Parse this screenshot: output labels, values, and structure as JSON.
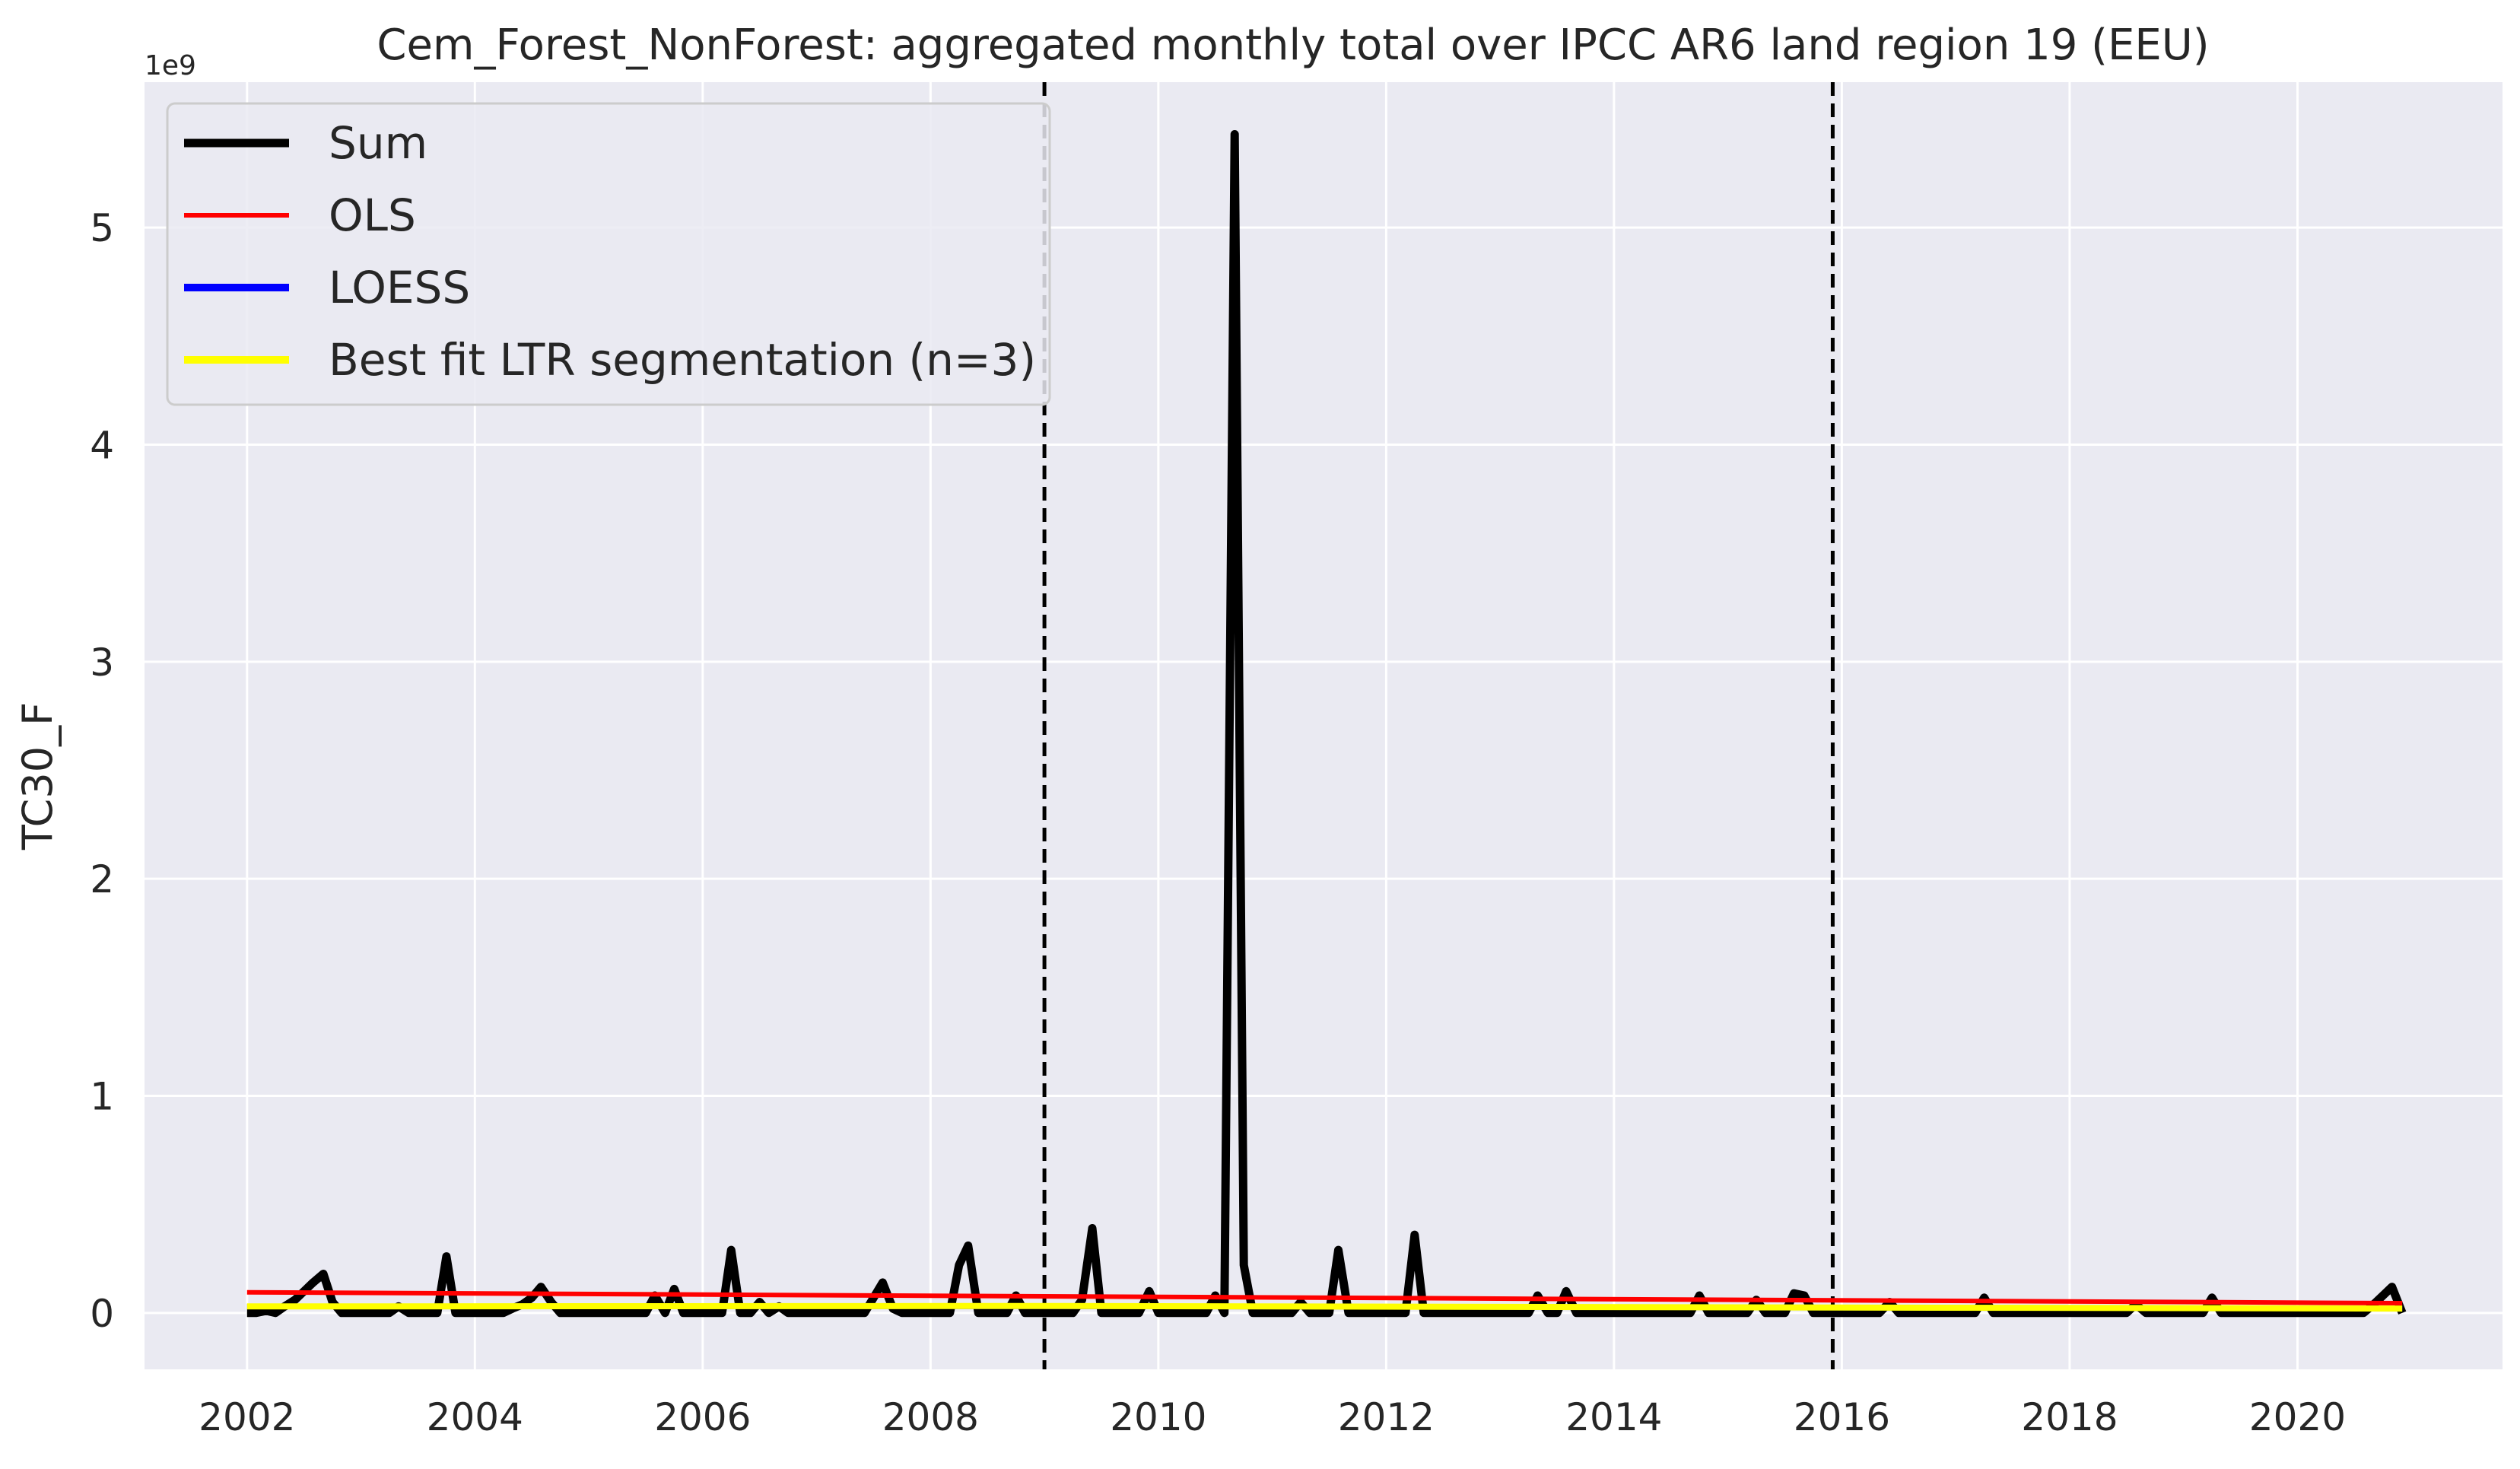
{
  "chart_data": {
    "type": "line",
    "title": "Cem_Forest_NonForest: aggregated monthly total over IPCC AR6 land region 19 (EEU)",
    "xlabel": "",
    "ylabel": "TC30_F",
    "y_offset_label": "1e9",
    "xlim": [
      2001.1,
      2021.8
    ],
    "ylim": [
      -0.26,
      5.67
    ],
    "x_ticks": [
      2002,
      2004,
      2006,
      2008,
      2010,
      2012,
      2014,
      2016,
      2018,
      2020
    ],
    "x_tick_labels": [
      "2002",
      "2004",
      "2006",
      "2008",
      "2010",
      "2012",
      "2014",
      "2016",
      "2018",
      "2020"
    ],
    "y_ticks": [
      0,
      1,
      2,
      3,
      4,
      5
    ],
    "y_tick_labels": [
      "0",
      "1",
      "2",
      "3",
      "4",
      "5"
    ],
    "grid": true,
    "legend_position": "top-left",
    "vertical_lines": [
      2009.0,
      2015.92
    ],
    "series": [
      {
        "name": "Sum",
        "color": "#000000",
        "x": [
          2002.0,
          2002.08,
          2002.17,
          2002.25,
          2002.33,
          2002.42,
          2002.5,
          2002.58,
          2002.67,
          2002.75,
          2002.83,
          2002.92,
          2003.0,
          2003.08,
          2003.17,
          2003.25,
          2003.33,
          2003.42,
          2003.5,
          2003.58,
          2003.67,
          2003.75,
          2003.83,
          2003.92,
          2004.0,
          2004.08,
          2004.17,
          2004.25,
          2004.33,
          2004.42,
          2004.5,
          2004.58,
          2004.67,
          2004.75,
          2004.83,
          2004.92,
          2005.0,
          2005.08,
          2005.17,
          2005.25,
          2005.33,
          2005.42,
          2005.5,
          2005.58,
          2005.67,
          2005.75,
          2005.83,
          2005.92,
          2006.0,
          2006.08,
          2006.17,
          2006.25,
          2006.33,
          2006.42,
          2006.5,
          2006.58,
          2006.67,
          2006.75,
          2006.83,
          2006.92,
          2007.0,
          2007.08,
          2007.17,
          2007.25,
          2007.33,
          2007.42,
          2007.5,
          2007.58,
          2007.67,
          2007.75,
          2007.83,
          2007.92,
          2008.0,
          2008.08,
          2008.17,
          2008.25,
          2008.33,
          2008.42,
          2008.5,
          2008.58,
          2008.67,
          2008.75,
          2008.83,
          2008.92,
          2009.0,
          2009.08,
          2009.17,
          2009.25,
          2009.33,
          2009.42,
          2009.5,
          2009.58,
          2009.67,
          2009.75,
          2009.83,
          2009.92,
          2010.0,
          2010.08,
          2010.17,
          2010.25,
          2010.33,
          2010.42,
          2010.5,
          2010.58,
          2010.67,
          2010.75,
          2010.83,
          2010.92,
          2011.0,
          2011.08,
          2011.17,
          2011.25,
          2011.33,
          2011.42,
          2011.5,
          2011.58,
          2011.67,
          2011.75,
          2011.83,
          2011.92,
          2012.0,
          2012.08,
          2012.17,
          2012.25,
          2012.33,
          2012.42,
          2012.5,
          2012.58,
          2012.67,
          2012.75,
          2012.83,
          2012.92,
          2013.0,
          2013.08,
          2013.17,
          2013.25,
          2013.33,
          2013.42,
          2013.5,
          2013.58,
          2013.67,
          2013.75,
          2013.83,
          2013.92,
          2014.0,
          2014.08,
          2014.17,
          2014.25,
          2014.33,
          2014.42,
          2014.5,
          2014.58,
          2014.67,
          2014.75,
          2014.83,
          2014.92,
          2015.0,
          2015.08,
          2015.17,
          2015.25,
          2015.33,
          2015.42,
          2015.5,
          2015.58,
          2015.67,
          2015.75,
          2015.83,
          2015.92,
          2016.0,
          2016.08,
          2016.17,
          2016.25,
          2016.33,
          2016.42,
          2016.5,
          2016.58,
          2016.67,
          2016.75,
          2016.83,
          2016.92,
          2017.0,
          2017.08,
          2017.17,
          2017.25,
          2017.33,
          2017.42,
          2017.5,
          2017.58,
          2017.67,
          2017.75,
          2017.83,
          2017.92,
          2018.0,
          2018.08,
          2018.17,
          2018.25,
          2018.33,
          2018.42,
          2018.5,
          2018.58,
          2018.67,
          2018.75,
          2018.83,
          2018.92,
          2019.0,
          2019.08,
          2019.17,
          2019.25,
          2019.33,
          2019.42,
          2019.5,
          2019.58,
          2019.67,
          2019.75,
          2019.83,
          2019.92,
          2020.0,
          2020.08,
          2020.17,
          2020.25,
          2020.33,
          2020.42,
          2020.5,
          2020.58,
          2020.67,
          2020.75,
          2020.83,
          2020.92
        ],
        "y": [
          0.0,
          0.0,
          0.01,
          0.0,
          0.03,
          0.06,
          0.1,
          0.14,
          0.18,
          0.05,
          0.0,
          0.0,
          0.0,
          0.0,
          0.0,
          0.0,
          0.03,
          0.0,
          0.0,
          0.0,
          0.0,
          0.26,
          0.0,
          0.0,
          0.0,
          0.0,
          0.0,
          0.0,
          0.02,
          0.04,
          0.07,
          0.12,
          0.05,
          0.0,
          0.0,
          0.0,
          0.0,
          0.0,
          0.0,
          0.0,
          0.0,
          0.0,
          0.0,
          0.08,
          0.0,
          0.11,
          0.0,
          0.0,
          0.0,
          0.0,
          0.0,
          0.29,
          0.0,
          0.0,
          0.05,
          0.0,
          0.03,
          0.0,
          0.0,
          0.0,
          0.0,
          0.0,
          0.0,
          0.0,
          0.0,
          0.0,
          0.07,
          0.14,
          0.02,
          0.0,
          0.0,
          0.0,
          0.0,
          0.0,
          0.0,
          0.22,
          0.31,
          0.0,
          0.0,
          0.0,
          0.0,
          0.08,
          0.0,
          0.0,
          0.0,
          0.0,
          0.0,
          0.0,
          0.06,
          0.39,
          0.0,
          0.0,
          0.0,
          0.0,
          0.0,
          0.1,
          0.0,
          0.0,
          0.0,
          0.0,
          0.0,
          0.0,
          0.08,
          0.0,
          5.43,
          0.22,
          0.0,
          0.0,
          0.0,
          0.0,
          0.0,
          0.05,
          0.0,
          0.0,
          0.0,
          0.29,
          0.0,
          0.0,
          0.0,
          0.0,
          0.0,
          0.0,
          0.0,
          0.36,
          0.0,
          0.0,
          0.0,
          0.0,
          0.0,
          0.0,
          0.0,
          0.0,
          0.0,
          0.0,
          0.0,
          0.0,
          0.08,
          0.0,
          0.0,
          0.1,
          0.0,
          0.0,
          0.0,
          0.0,
          0.0,
          0.0,
          0.0,
          0.0,
          0.0,
          0.0,
          0.0,
          0.0,
          0.0,
          0.08,
          0.0,
          0.0,
          0.0,
          0.0,
          0.0,
          0.06,
          0.0,
          0.0,
          0.0,
          0.09,
          0.08,
          0.0,
          0.0,
          0.0,
          0.0,
          0.0,
          0.0,
          0.0,
          0.0,
          0.05,
          0.0,
          0.0,
          0.0,
          0.0,
          0.0,
          0.0,
          0.0,
          0.0,
          0.0,
          0.07,
          0.0,
          0.0,
          0.0,
          0.0,
          0.0,
          0.0,
          0.0,
          0.0,
          0.0,
          0.0,
          0.0,
          0.0,
          0.0,
          0.0,
          0.0,
          0.04,
          0.0,
          0.0,
          0.0,
          0.0,
          0.0,
          0.0,
          0.0,
          0.07,
          0.0,
          0.0,
          0.0,
          0.0,
          0.0,
          0.0,
          0.0,
          0.0,
          0.0,
          0.0,
          0.0,
          0.0,
          0.0,
          0.0,
          0.0,
          0.0,
          0.04,
          0.08,
          0.12,
          0.0
        ]
      },
      {
        "name": "OLS",
        "color": "#ff0000",
        "x": [
          2002.0,
          2020.92
        ],
        "y": [
          0.095,
          0.045
        ]
      },
      {
        "name": "LOESS",
        "color": "#0000ff",
        "x": [
          2002.0,
          2009.0,
          2015.92,
          2020.92
        ],
        "y": [
          0.03,
          0.03,
          0.025,
          0.02
        ]
      },
      {
        "name": "Best fit LTR segmentation (n=3)",
        "color": "#ffff00",
        "x": [
          2002.0,
          2009.0,
          2015.92,
          2020.92
        ],
        "y": [
          0.03,
          0.032,
          0.025,
          0.02
        ]
      }
    ]
  }
}
